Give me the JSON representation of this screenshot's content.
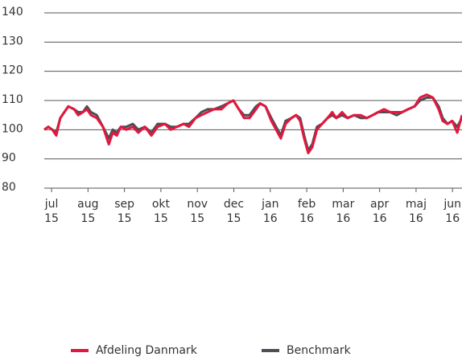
{
  "chart_data": {
    "type": "line",
    "x": [
      -0.2,
      -0.09,
      0.02,
      0.13,
      0.24,
      0.35,
      0.46,
      0.62,
      0.73,
      0.86,
      0.97,
      1.08,
      1.24,
      1.41,
      1.57,
      1.68,
      1.79,
      1.9,
      2.05,
      2.23,
      2.38,
      2.56,
      2.74,
      2.91,
      3.11,
      3.27,
      3.44,
      3.62,
      3.77,
      3.95,
      4.11,
      4.28,
      4.46,
      4.66,
      4.83,
      4.99,
      5.14,
      5.28,
      5.43,
      5.61,
      5.72,
      5.87,
      6.03,
      6.16,
      6.29,
      6.42,
      6.58,
      6.71,
      6.82,
      6.93,
      7.04,
      7.15,
      7.28,
      7.42,
      7.57,
      7.7,
      7.81,
      7.97,
      8.12,
      8.3,
      8.48,
      8.65,
      8.81,
      8.96,
      9.12,
      9.29,
      9.47,
      9.62,
      9.78,
      9.96,
      10.11,
      10.29,
      10.46,
      10.62,
      10.73,
      10.86,
      10.99,
      11.13,
      11.26
    ],
    "series": [
      {
        "name": "Benchmark",
        "color": "#4a4f55",
        "values": [
          100,
          101,
          100,
          99,
          104,
          106,
          108,
          107,
          106,
          106,
          108,
          106,
          105,
          101,
          97,
          100,
          99,
          101,
          101,
          102,
          100,
          101,
          99,
          102,
          102,
          101,
          101,
          102,
          102,
          104,
          106,
          107,
          107,
          108,
          109,
          110,
          107,
          105,
          105,
          108,
          109,
          108,
          104,
          101,
          98,
          103,
          104,
          105,
          104,
          98,
          93,
          95,
          101,
          102,
          104,
          105,
          104,
          105,
          104,
          105,
          104,
          104,
          105,
          106,
          106,
          106,
          105,
          106,
          107,
          108,
          110,
          111,
          111,
          108,
          104,
          102,
          103,
          101,
          104
        ]
      },
      {
        "name": "Afdeling Danmark",
        "color": "#e3173e",
        "values": [
          100,
          101,
          100,
          98,
          104,
          106,
          108,
          107,
          105,
          106,
          107,
          105,
          104,
          101,
          95,
          99,
          98,
          101,
          100,
          101,
          99,
          101,
          98,
          101,
          102,
          100,
          101,
          102,
          101,
          104,
          105,
          106,
          107,
          107,
          109,
          110,
          107,
          104,
          104,
          107,
          109,
          108,
          103,
          100,
          97,
          102,
          104,
          105,
          103,
          97,
          92,
          94,
          100,
          102,
          104,
          106,
          104,
          106,
          104,
          105,
          105,
          104,
          105,
          106,
          107,
          106,
          106,
          106,
          107,
          108,
          111,
          112,
          111,
          107,
          103,
          102,
          103,
          99,
          105
        ]
      }
    ],
    "xlim": [
      -0.2,
      11.26
    ],
    "xticks": [
      {
        "value": 0,
        "label": [
          "jul",
          "15"
        ]
      },
      {
        "value": 1,
        "label": [
          "aug",
          "15"
        ]
      },
      {
        "value": 2,
        "label": [
          "sep",
          "15"
        ]
      },
      {
        "value": 3,
        "label": [
          "okt",
          "15"
        ]
      },
      {
        "value": 4,
        "label": [
          "nov",
          "15"
        ]
      },
      {
        "value": 5,
        "label": [
          "dec",
          "15"
        ]
      },
      {
        "value": 6,
        "label": [
          "jan",
          "16"
        ]
      },
      {
        "value": 7,
        "label": [
          "feb",
          "16"
        ]
      },
      {
        "value": 8,
        "label": [
          "mar",
          "16"
        ]
      },
      {
        "value": 9,
        "label": [
          "apr",
          "16"
        ]
      },
      {
        "value": 10,
        "label": [
          "maj",
          "16"
        ]
      },
      {
        "value": 11,
        "label": [
          "jun",
          "16"
        ]
      }
    ],
    "ylim": [
      80,
      140
    ],
    "yticks": [
      80,
      90,
      100,
      110,
      120,
      130,
      140
    ],
    "grid": true
  }
}
